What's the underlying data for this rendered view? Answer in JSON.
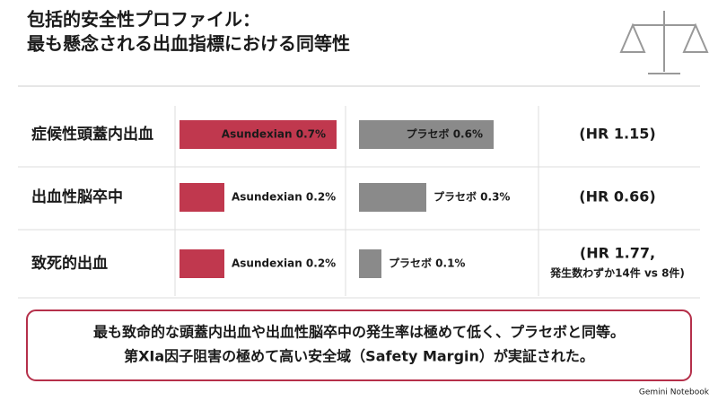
{
  "title": [
    "包括的安全性プロファイル：",
    "最も懸念される出血指標における同等性"
  ],
  "chart_data": {
    "type": "bar",
    "categories": [
      "症候性頭蓋内出血",
      "出血性脳卒中",
      "致死的出血"
    ],
    "series": [
      {
        "name": "Asundexian",
        "color": "#c0384e",
        "values": [
          0.7,
          0.2,
          0.2
        ],
        "value_labels": [
          "Asundexian 0.7%",
          "Asundexian 0.2%",
          "Asundexian 0.2%"
        ]
      },
      {
        "name": "プラセボ",
        "color": "#8a8a8a",
        "values": [
          0.6,
          0.3,
          0.1
        ],
        "value_labels": [
          "プラセボ 0.6%",
          "プラセボ 0.3%",
          "プラセボ 0.1%"
        ]
      }
    ],
    "hr": [
      [
        "(HR 1.15)"
      ],
      [
        "(HR 0.66)"
      ],
      [
        "(HR 1.77,",
        "発生数わずか14件 vs 8件)"
      ]
    ]
  },
  "summary": [
    "最も致命的な頭蓋内出血や出血性脳卒中の発生率は極めて低く、プラセボと同等。",
    "第XIa因子阻害の極めて高い安全域（Safety Margin）が実証された。"
  ],
  "brand": "Gemini Notebook"
}
